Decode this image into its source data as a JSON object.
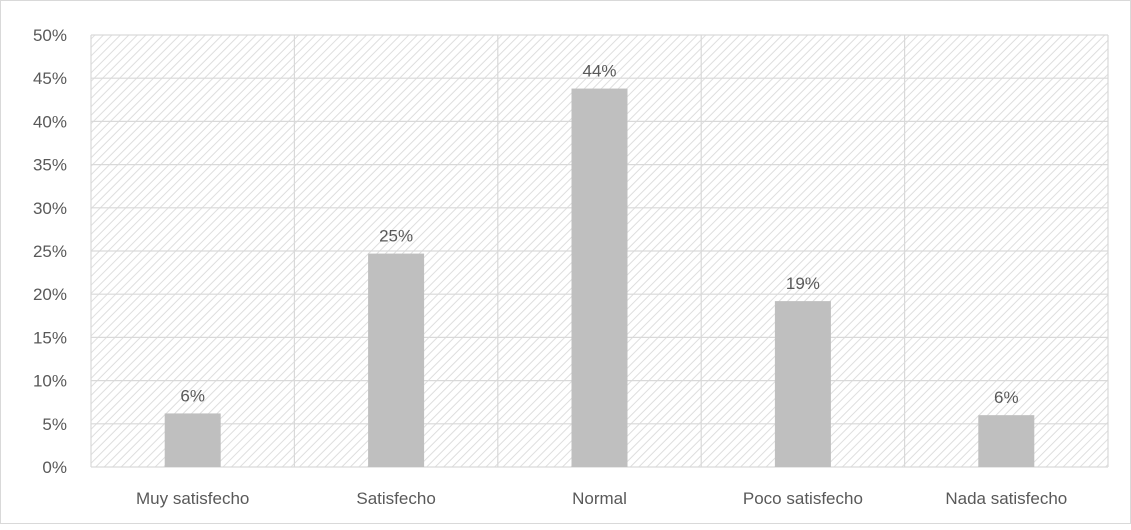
{
  "chart_data": {
    "type": "bar",
    "title": "",
    "xlabel": "",
    "ylabel": "",
    "categories": [
      "Muy satisfecho",
      "Satisfecho",
      "Normal",
      "Poco satisfecho",
      "Nada satisfecho"
    ],
    "values": [
      6.2,
      24.7,
      43.8,
      19.2,
      6.0
    ],
    "data_labels": [
      "6%",
      "25%",
      "44%",
      "19%",
      "6%"
    ],
    "ylim": [
      0,
      50
    ],
    "y_ticks": [
      0,
      5,
      10,
      15,
      20,
      25,
      30,
      35,
      40,
      45,
      50
    ],
    "y_tick_labels": [
      "0%",
      "5%",
      "10%",
      "15%",
      "20%",
      "25%",
      "30%",
      "35%",
      "40%",
      "45%",
      "50%"
    ],
    "grid": true,
    "legend": "none",
    "colors": {
      "bar": "#bfbfbf",
      "grid": "#d9d9d9",
      "plot_pattern": "#e6e6e6",
      "text": "#595959"
    }
  }
}
